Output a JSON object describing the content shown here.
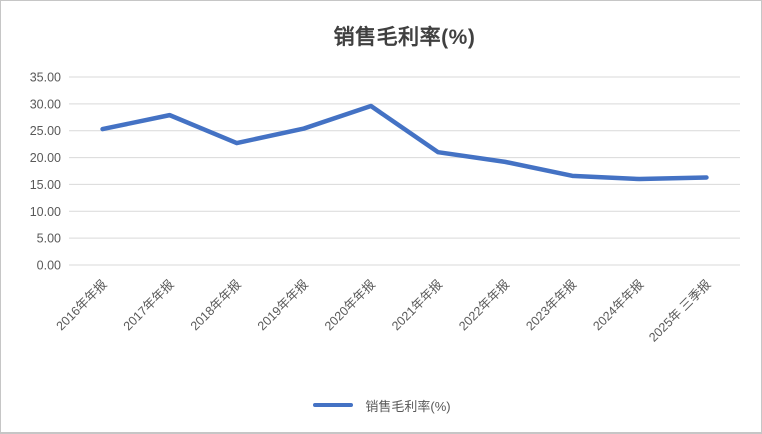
{
  "chart": {
    "title": "销售毛利率(%)",
    "legend_label": "销售毛利率(%)"
  },
  "chart_data": {
    "type": "line",
    "title": "销售毛利率(%)",
    "categories": [
      "2016年年报",
      "2017年年报",
      "2018年年报",
      "2019年年报",
      "2020年年报",
      "2021年年报",
      "2022年年报",
      "2023年年报",
      "2024年年报",
      "2025年 三季报"
    ],
    "series": [
      {
        "name": "销售毛利率(%)",
        "values": [
          25.3,
          27.9,
          22.7,
          25.4,
          29.6,
          21.0,
          19.2,
          16.6,
          16.0,
          16.3
        ]
      }
    ],
    "xlabel": "",
    "ylabel": "",
    "ylim": [
      0,
      35
    ],
    "y_tick_labels": [
      "0.00",
      "5.00",
      "10.00",
      "15.00",
      "20.00",
      "25.00",
      "30.00",
      "35.00"
    ],
    "grid": true,
    "legend_position": "bottom",
    "colors": {
      "line": "#4472C4",
      "grid": "#D9D9D9",
      "tick_text": "#595959",
      "title_text": "#404040"
    }
  }
}
